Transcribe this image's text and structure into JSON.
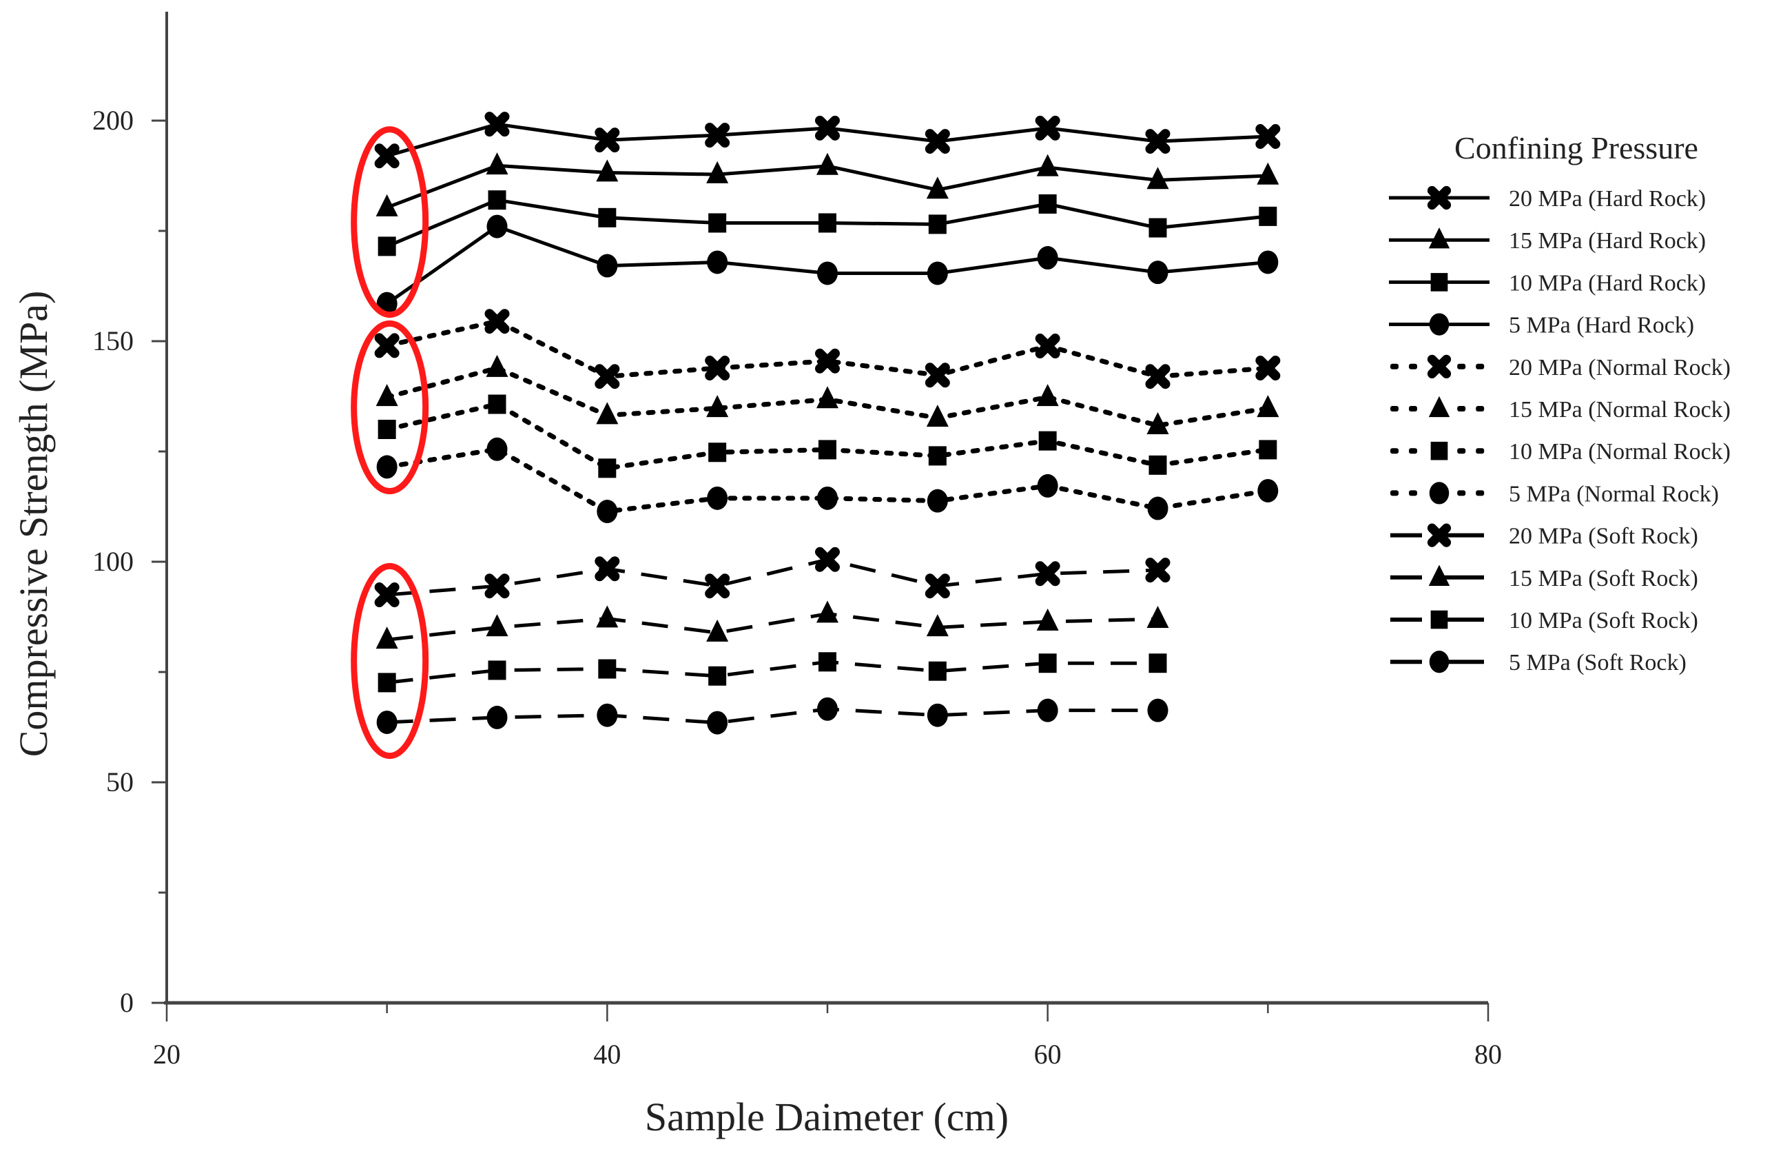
{
  "chart_data": {
    "type": "line",
    "title": "",
    "xlabel": "Sample Daimeter (cm)",
    "ylabel": "Compressive Strength (MPa)",
    "xlim": [
      20,
      80
    ],
    "ylim": [
      0,
      225
    ],
    "xticks": [
      20,
      40,
      60,
      80
    ],
    "xminor_ticks": [
      30,
      50,
      70
    ],
    "yticks": [
      0,
      50,
      100,
      150,
      200
    ],
    "yminor_ticks": [
      25,
      75,
      125,
      175
    ],
    "grid": false,
    "legend_title": "Confining Pressure",
    "legend_position": "right",
    "x": [
      30,
      35,
      40,
      45,
      50,
      55,
      60,
      65,
      70
    ],
    "series": [
      {
        "name": "20 MPa (Hard Rock)",
        "marker": "x",
        "line": "solid",
        "values": [
          192.0,
          199.2,
          195.6,
          196.7,
          198.3,
          195.3,
          198.3,
          195.3,
          196.4
        ]
      },
      {
        "name": "15 MPa (Hard Rock)",
        "marker": "triangle",
        "line": "solid",
        "values": [
          180.3,
          189.8,
          188.2,
          187.8,
          189.7,
          184.3,
          189.4,
          186.5,
          187.5
        ]
      },
      {
        "name": "10 MPa (Hard Rock)",
        "marker": "square",
        "line": "solid",
        "values": [
          171.5,
          182.0,
          178.0,
          176.8,
          176.8,
          176.5,
          181.1,
          175.7,
          178.3
        ]
      },
      {
        "name": "5 MPa (Hard Rock)",
        "marker": "circle",
        "line": "solid",
        "values": [
          158.5,
          176.0,
          167.1,
          167.9,
          165.4,
          165.4,
          168.9,
          165.6,
          167.9
        ]
      },
      {
        "name": "20 MPa (Normal Rock)",
        "marker": "x",
        "line": "dotted",
        "values": [
          149.0,
          154.5,
          142.0,
          143.9,
          145.5,
          142.3,
          148.9,
          142.0,
          143.9
        ]
      },
      {
        "name": "15 MPa (Normal Rock)",
        "marker": "triangle",
        "line": "dotted",
        "values": [
          137.3,
          143.9,
          133.2,
          134.8,
          136.8,
          132.6,
          137.3,
          130.9,
          134.8
        ]
      },
      {
        "name": "10 MPa (Normal Rock)",
        "marker": "square",
        "line": "dotted",
        "values": [
          130.0,
          135.7,
          121.2,
          124.8,
          125.4,
          124.0,
          127.4,
          121.9,
          125.4
        ]
      },
      {
        "name": "5 MPa (Normal Rock)",
        "marker": "circle",
        "line": "dotted",
        "values": [
          121.5,
          125.5,
          111.4,
          114.4,
          114.4,
          113.8,
          117.2,
          112.1,
          116.1
        ]
      },
      {
        "name": "20 MPa (Soft Rock)",
        "marker": "x",
        "line": "dashed",
        "values": [
          92.5,
          94.5,
          98.4,
          94.5,
          100.5,
          94.5,
          97.3,
          98.1,
          null
        ]
      },
      {
        "name": "15 MPa (Soft Rock)",
        "marker": "triangle",
        "line": "dashed",
        "values": [
          82.3,
          85.1,
          87.1,
          83.9,
          88.2,
          85.1,
          86.4,
          87.0,
          null
        ]
      },
      {
        "name": "10 MPa (Soft Rock)",
        "marker": "square",
        "line": "dashed",
        "values": [
          72.6,
          75.4,
          75.7,
          74.1,
          77.3,
          75.2,
          77.0,
          77.0,
          null
        ]
      },
      {
        "name": "5 MPa (Soft Rock)",
        "marker": "circle",
        "line": "dashed",
        "values": [
          63.6,
          64.7,
          65.2,
          63.5,
          66.6,
          65.2,
          66.3,
          66.3,
          null
        ]
      }
    ],
    "annotations": [
      {
        "type": "ellipse",
        "color": "#ff0000",
        "x": 30,
        "y_range": [
          156,
          198
        ],
        "note": "highlights 30 cm Hard Rock points"
      },
      {
        "type": "ellipse",
        "color": "#ff0000",
        "x": 30,
        "y_range": [
          116,
          154
        ],
        "note": "highlights 30 cm Normal Rock points"
      },
      {
        "type": "ellipse",
        "color": "#ff0000",
        "x": 30,
        "y_range": [
          56,
          99
        ],
        "note": "highlights 30 cm Soft Rock points"
      }
    ]
  },
  "colors": {
    "series": "#000000",
    "axis": "#444444",
    "highlight": "#ff1a1a",
    "text": "#222222"
  }
}
